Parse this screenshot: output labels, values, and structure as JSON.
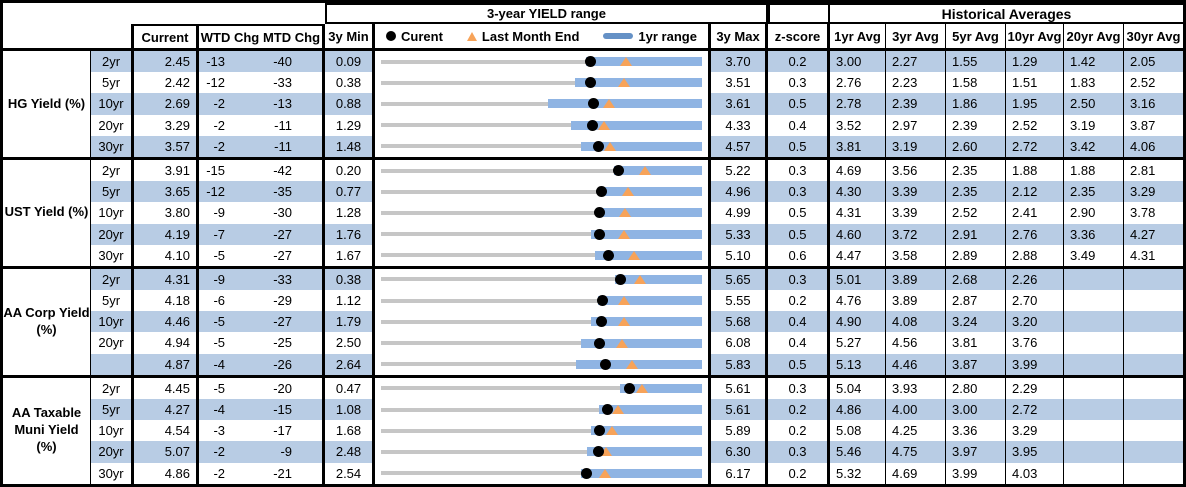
{
  "colors": {
    "band_blue": "#B8CCE4",
    "range_bar_blue": "#8FB4E3",
    "legend_bar_blue": "#6591C6",
    "track_gray": "#C6C6C6",
    "current_dot_black": "#000000",
    "last_month_orange": "#F7A359",
    "border_black": "#000000"
  },
  "chart_data": {
    "type": "table",
    "title": "3-year YIELD range",
    "hist_title": "Historical Averages",
    "columns": {
      "current": "Current",
      "wtd": "WTD Chg",
      "mtd": "MTD Chg",
      "min3y": "3y Min",
      "max3y": "3y Max",
      "zscore": "z-score",
      "avgs": [
        "1yr Avg",
        "3yr Avg",
        "5yr Avg",
        "10yr Avg",
        "20yr Avg",
        "30yr Avg"
      ]
    },
    "legend": {
      "current": "Curent",
      "last_month": "Last Month End",
      "range": "1yr range"
    },
    "marker_semantics": {
      "dot": "Current yield",
      "triangle": "Last month end yield (current minus MTD chg bp)",
      "bar": "1-year yield range",
      "track": "3-year yield range from 3y Min to 3y Max"
    },
    "sections": [
      {
        "label": "HG Yield (%)",
        "rows": [
          {
            "tenor": "2yr",
            "current": "2.45",
            "wtd": "-13",
            "mtd": "-40",
            "min3y": "0.09",
            "max3y": "3.70",
            "zscore": "0.2",
            "yr1_lo": 2.39,
            "yr1_hi": 3.7,
            "avgs": [
              "3.00",
              "2.27",
              "1.55",
              "1.29",
              "1.42",
              "2.05"
            ]
          },
          {
            "tenor": "5yr",
            "current": "2.42",
            "wtd": "-12",
            "mtd": "-33",
            "min3y": "0.38",
            "max3y": "3.51",
            "zscore": "0.3",
            "yr1_lo": 2.27,
            "yr1_hi": 3.51,
            "avgs": [
              "2.76",
              "2.23",
              "1.58",
              "1.51",
              "1.83",
              "2.52"
            ]
          },
          {
            "tenor": "10yr",
            "current": "2.69",
            "wtd": "-2",
            "mtd": "-13",
            "min3y": "0.88",
            "max3y": "3.61",
            "zscore": "0.5",
            "yr1_lo": 2.3,
            "yr1_hi": 3.61,
            "avgs": [
              "2.78",
              "2.39",
              "1.86",
              "1.95",
              "2.50",
              "3.16"
            ]
          },
          {
            "tenor": "20yr",
            "current": "3.29",
            "wtd": "-2",
            "mtd": "-11",
            "min3y": "1.29",
            "max3y": "4.33",
            "zscore": "0.4",
            "yr1_lo": 3.09,
            "yr1_hi": 4.33,
            "avgs": [
              "3.52",
              "2.97",
              "2.39",
              "2.52",
              "3.19",
              "3.87"
            ]
          },
          {
            "tenor": "30yr",
            "current": "3.57",
            "wtd": "-2",
            "mtd": "-11",
            "min3y": "1.48",
            "max3y": "4.57",
            "zscore": "0.5",
            "yr1_lo": 3.41,
            "yr1_hi": 4.57,
            "avgs": [
              "3.81",
              "3.19",
              "2.60",
              "2.72",
              "3.42",
              "4.06"
            ]
          }
        ]
      },
      {
        "label": "UST Yield (%)",
        "rows": [
          {
            "tenor": "2yr",
            "current": "3.91",
            "wtd": "-15",
            "mtd": "-42",
            "min3y": "0.20",
            "max3y": "5.22",
            "zscore": "0.3",
            "yr1_lo": 3.84,
            "yr1_hi": 5.22,
            "avgs": [
              "4.69",
              "3.56",
              "2.35",
              "1.88",
              "1.88",
              "2.81"
            ]
          },
          {
            "tenor": "5yr",
            "current": "3.65",
            "wtd": "-12",
            "mtd": "-35",
            "min3y": "0.77",
            "max3y": "4.96",
            "zscore": "0.3",
            "yr1_lo": 3.62,
            "yr1_hi": 4.96,
            "avgs": [
              "4.30",
              "3.39",
              "2.35",
              "2.12",
              "2.35",
              "3.29"
            ]
          },
          {
            "tenor": "10yr",
            "current": "3.80",
            "wtd": "-9",
            "mtd": "-30",
            "min3y": "1.28",
            "max3y": "4.99",
            "zscore": "0.5",
            "yr1_lo": 3.76,
            "yr1_hi": 4.99,
            "avgs": [
              "4.31",
              "3.39",
              "2.52",
              "2.41",
              "2.90",
              "3.78"
            ]
          },
          {
            "tenor": "20yr",
            "current": "4.19",
            "wtd": "-7",
            "mtd": "-27",
            "min3y": "1.76",
            "max3y": "5.33",
            "zscore": "0.5",
            "yr1_lo": 4.1,
            "yr1_hi": 5.33,
            "avgs": [
              "4.60",
              "3.72",
              "2.91",
              "2.76",
              "3.36",
              "4.27"
            ]
          },
          {
            "tenor": "30yr",
            "current": "4.10",
            "wtd": "-5",
            "mtd": "-27",
            "min3y": "1.67",
            "max3y": "5.10",
            "zscore": "0.6",
            "yr1_lo": 3.96,
            "yr1_hi": 5.1,
            "avgs": [
              "4.47",
              "3.58",
              "2.89",
              "2.88",
              "3.49",
              "4.31"
            ]
          }
        ]
      },
      {
        "label": "AA Corp Yield\n(%)",
        "rows": [
          {
            "tenor": "2yr",
            "current": "4.31",
            "wtd": "-9",
            "mtd": "-33",
            "min3y": "0.38",
            "max3y": "5.65",
            "zscore": "0.3",
            "yr1_lo": 4.22,
            "yr1_hi": 5.65,
            "avgs": [
              "5.01",
              "3.89",
              "2.68",
              "2.26",
              "",
              ""
            ]
          },
          {
            "tenor": "5yr",
            "current": "4.18",
            "wtd": "-6",
            "mtd": "-29",
            "min3y": "1.12",
            "max3y": "5.55",
            "zscore": "0.2",
            "yr1_lo": 4.11,
            "yr1_hi": 5.55,
            "avgs": [
              "4.76",
              "3.89",
              "2.87",
              "2.70",
              "",
              ""
            ]
          },
          {
            "tenor": "10yr",
            "current": "4.46",
            "wtd": "-5",
            "mtd": "-27",
            "min3y": "1.79",
            "max3y": "5.68",
            "zscore": "0.4",
            "yr1_lo": 4.33,
            "yr1_hi": 5.68,
            "avgs": [
              "4.90",
              "4.08",
              "3.24",
              "3.20",
              "",
              ""
            ]
          },
          {
            "tenor": "20yr",
            "current": "4.94",
            "wtd": "-5",
            "mtd": "-25",
            "min3y": "2.50",
            "max3y": "6.08",
            "zscore": "0.4",
            "yr1_lo": 4.73,
            "yr1_hi": 6.08,
            "avgs": [
              "5.27",
              "4.56",
              "3.81",
              "3.76",
              "",
              ""
            ]
          },
          {
            "tenor": "",
            "current": "4.87",
            "wtd": "-4",
            "mtd": "-26",
            "min3y": "2.64",
            "max3y": "5.83",
            "zscore": "0.5",
            "yr1_lo": 4.58,
            "yr1_hi": 5.83,
            "avgs": [
              "5.13",
              "4.46",
              "3.87",
              "3.99",
              "",
              ""
            ]
          }
        ]
      },
      {
        "label": "AA Taxable\nMuni Yield\n(%)",
        "rows": [
          {
            "tenor": "2yr",
            "current": "4.45",
            "wtd": "-5",
            "mtd": "-20",
            "min3y": "0.47",
            "max3y": "5.61",
            "zscore": "0.3",
            "yr1_lo": 4.3,
            "yr1_hi": 5.61,
            "avgs": [
              "5.04",
              "3.93",
              "2.80",
              "2.29",
              "",
              ""
            ]
          },
          {
            "tenor": "5yr",
            "current": "4.27",
            "wtd": "-4",
            "mtd": "-15",
            "min3y": "1.08",
            "max3y": "5.61",
            "zscore": "0.2",
            "yr1_lo": 4.15,
            "yr1_hi": 5.61,
            "avgs": [
              "4.86",
              "4.00",
              "3.00",
              "2.72",
              "",
              ""
            ]
          },
          {
            "tenor": "10yr",
            "current": "4.54",
            "wtd": "-3",
            "mtd": "-17",
            "min3y": "1.68",
            "max3y": "5.89",
            "zscore": "0.2",
            "yr1_lo": 4.43,
            "yr1_hi": 5.89,
            "avgs": [
              "5.08",
              "4.25",
              "3.36",
              "3.29",
              "",
              ""
            ]
          },
          {
            "tenor": "20yr",
            "current": "5.07",
            "wtd": "-2",
            "mtd": "-9",
            "min3y": "2.48",
            "max3y": "6.30",
            "zscore": "0.3",
            "yr1_lo": 4.93,
            "yr1_hi": 6.3,
            "avgs": [
              "5.46",
              "4.75",
              "3.97",
              "3.95",
              "",
              ""
            ]
          },
          {
            "tenor": "30yr",
            "current": "4.86",
            "wtd": "-2",
            "mtd": "-21",
            "min3y": "2.54",
            "max3y": "6.17",
            "zscore": "0.2",
            "yr1_lo": 4.8,
            "yr1_hi": 6.17,
            "avgs": [
              "5.32",
              "4.69",
              "3.99",
              "4.03",
              "",
              ""
            ]
          }
        ]
      }
    ]
  }
}
